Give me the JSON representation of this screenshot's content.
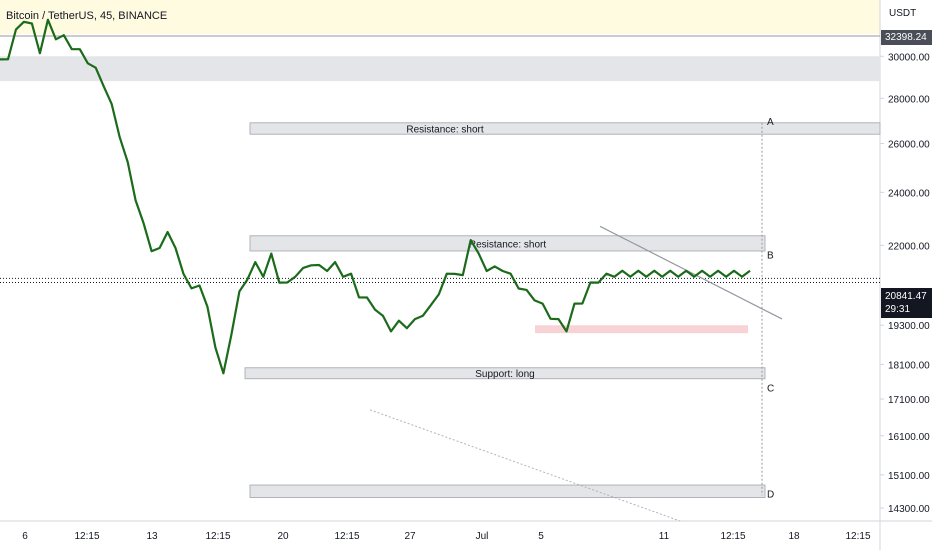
{
  "header": {
    "title": "Bitcoin / TetherUS, 45, BINANCE"
  },
  "price_axis": {
    "currency": "USDT",
    "top_tag": "32398.24",
    "last_price": "20841.47",
    "countdown": "29:31"
  },
  "colors": {
    "candle": "#1b6b1b",
    "zone_fill": "#e4e5e8",
    "zone_stroke": "#b0b3b8",
    "highlight_zone": "#f8d3d6",
    "trendline": "#9598a1",
    "tag_dark": "#4a4e58",
    "tag_black": "#131722"
  },
  "chart_data": {
    "type": "line",
    "title": "Bitcoin / TetherUS, 45, BINANCE",
    "y_scale": "log",
    "ylim": [
      14000,
      32900
    ],
    "y_ticks": [
      30000.0,
      28000.0,
      26000.0,
      24000.0,
      22000.0,
      19300.0,
      18100.0,
      17100.0,
      16100.0,
      15100.0,
      14300.0
    ],
    "y_tick_labels": [
      "30000.00",
      "28000.00",
      "26000.00",
      "24000.00",
      "22000.00",
      "19300.00",
      "18100.00",
      "17100.00",
      "16100.00",
      "15100.00",
      "14300.00"
    ],
    "x_tick_labels": [
      "6",
      "12:15",
      "13",
      "12:15",
      "20",
      "12:15",
      "27",
      "Jul",
      "5",
      "11",
      "12:15",
      "18",
      "12:15"
    ],
    "x_tick_index": [
      0,
      1,
      2,
      3,
      4,
      5,
      6,
      7,
      8,
      9,
      10,
      11,
      12
    ],
    "series": [
      {
        "x": [
          0,
          0.5,
          1,
          1.5,
          2,
          2.5,
          3,
          3.5,
          4,
          4.5,
          5,
          5.5,
          6,
          6.5,
          7,
          7.5,
          8,
          8.5,
          9,
          9.5,
          10,
          10.5,
          11,
          11.5,
          12,
          12.5,
          13,
          13.5,
          14,
          14.5,
          15,
          15.5,
          16,
          16.5,
          17,
          17.5,
          18,
          18.5,
          19,
          19.5,
          20,
          20.5,
          21,
          21.5,
          22,
          22.5,
          23,
          23.5,
          24,
          24.5,
          25,
          25.5,
          26,
          26.5,
          27,
          27.5,
          28,
          28.5,
          29,
          29.5,
          30,
          30.5,
          31,
          31.5,
          32,
          32.5,
          33,
          33.5,
          34,
          34.5,
          35,
          35.5,
          36,
          36.5,
          37,
          37.5,
          38,
          38.5,
          39,
          39.5,
          40,
          40.5,
          41,
          41.5,
          42,
          42.5,
          43,
          43.5,
          44,
          44.5,
          45,
          45.5,
          46,
          46.5,
          47
        ],
        "y": [
          29700,
          30000,
          31200,
          31900,
          31500,
          30300,
          31700,
          31000,
          30900,
          30500,
          30200,
          29800,
          29300,
          28700,
          27600,
          26400,
          25100,
          23800,
          22700,
          21900,
          21800,
          22600,
          21800,
          21100,
          20400,
          20700,
          19800,
          18700,
          17750,
          19100,
          20300,
          20900,
          21300,
          21000,
          21600,
          20800,
          20600,
          21000,
          21100,
          21400,
          21200,
          21200,
          21300,
          21000,
          20900,
          20300,
          20100,
          19900,
          19500,
          19200,
          19350,
          19300,
          19400,
          19700,
          19850,
          20400,
          20900,
          21100,
          20850,
          22300,
          21600,
          21200,
          21150,
          21200,
          20900,
          20600,
          20350,
          20200,
          19900,
          19600,
          19400,
          19200,
          19900,
          20100,
          20600,
          20800,
          20900,
          21000,
          21000,
          21000,
          21000,
          21000,
          21000,
          21000,
          21000,
          21000,
          21000,
          21000,
          21000,
          21000,
          21000,
          21000,
          21000,
          21000,
          21000
        ]
      }
    ],
    "zones": [
      {
        "label": "",
        "top": 30000,
        "bottom": 28800
      },
      {
        "label": "Resistance: short",
        "top": 26900,
        "bottom": 26400
      },
      {
        "label": "Resistance: short",
        "top": 22350,
        "bottom": 21800
      },
      {
        "label": "",
        "top": 19300,
        "bottom": 19050
      },
      {
        "label": "Support: long",
        "top": 18000,
        "bottom": 17680
      },
      {
        "label": "",
        "top": 14850,
        "bottom": 14550
      }
    ],
    "markers": [
      "A",
      "B",
      "C",
      "D"
    ],
    "horizontal_lines": [
      20841.47,
      20700
    ]
  }
}
